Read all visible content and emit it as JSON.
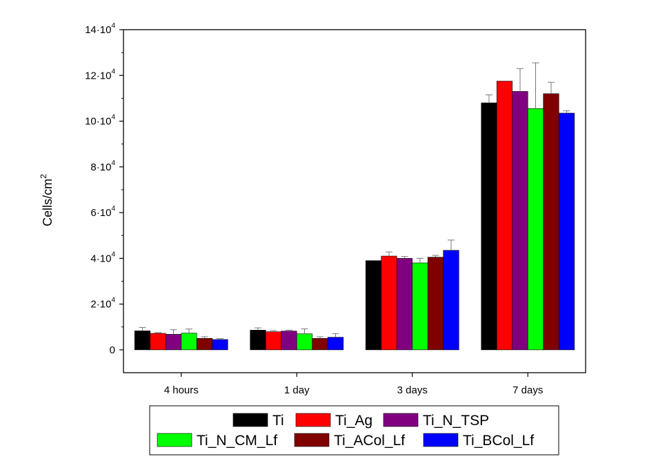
{
  "chart_data": {
    "type": "bar",
    "ylabel": "Cells/cm",
    "ylabel_superscript": "2",
    "xlabel": "",
    "ylim": [
      -10000,
      140000
    ],
    "y_ticks": [
      0,
      20000,
      40000,
      60000,
      80000,
      100000,
      120000,
      140000
    ],
    "y_tick_labels": [
      {
        "value": 0,
        "base": "0",
        "exp": ""
      },
      {
        "value": 20000,
        "base": "2·10",
        "exp": "4"
      },
      {
        "value": 40000,
        "base": "4·10",
        "exp": "4"
      },
      {
        "value": 60000,
        "base": "6·10",
        "exp": "4"
      },
      {
        "value": 80000,
        "base": "8·10",
        "exp": "4"
      },
      {
        "value": 100000,
        "base": "10·10",
        "exp": "4"
      },
      {
        "value": 120000,
        "base": "12·10",
        "exp": "4"
      },
      {
        "value": 140000,
        "base": "14·10",
        "exp": "4"
      }
    ],
    "categories": [
      "4 hours",
      "1 day",
      "3 days",
      "7 days"
    ],
    "series": [
      {
        "name": "Ti",
        "color": "#000000",
        "values": [
          8300,
          8600,
          39000,
          108000
        ],
        "errors": [
          1500,
          1000,
          0,
          3500
        ]
      },
      {
        "name": "Ti_Ag",
        "color": "#ff0000",
        "values": [
          7200,
          7900,
          41000,
          117500
        ],
        "errors": [
          300,
          500,
          1800,
          0
        ]
      },
      {
        "name": "Ti_N_TSP",
        "color": "#800080",
        "values": [
          6800,
          8200,
          40000,
          113000
        ],
        "errors": [
          2000,
          400,
          800,
          10000
        ]
      },
      {
        "name": "Ti_N_CM_Lf",
        "color": "#00ff00",
        "values": [
          7300,
          7000,
          38000,
          105500
        ],
        "errors": [
          1800,
          2200,
          2000,
          20000
        ]
      },
      {
        "name": "Ti_ACol_Lf",
        "color": "#800000",
        "values": [
          5000,
          5000,
          40500,
          112000
        ],
        "errors": [
          700,
          700,
          800,
          5000
        ]
      },
      {
        "name": "Ti_BCol_Lf",
        "color": "#0000ff",
        "values": [
          4500,
          5500,
          43500,
          103500
        ],
        "errors": [
          400,
          1600,
          4500,
          1000
        ]
      }
    ],
    "legend": {
      "placement": "bottom",
      "columns": 3
    },
    "grid": false
  }
}
